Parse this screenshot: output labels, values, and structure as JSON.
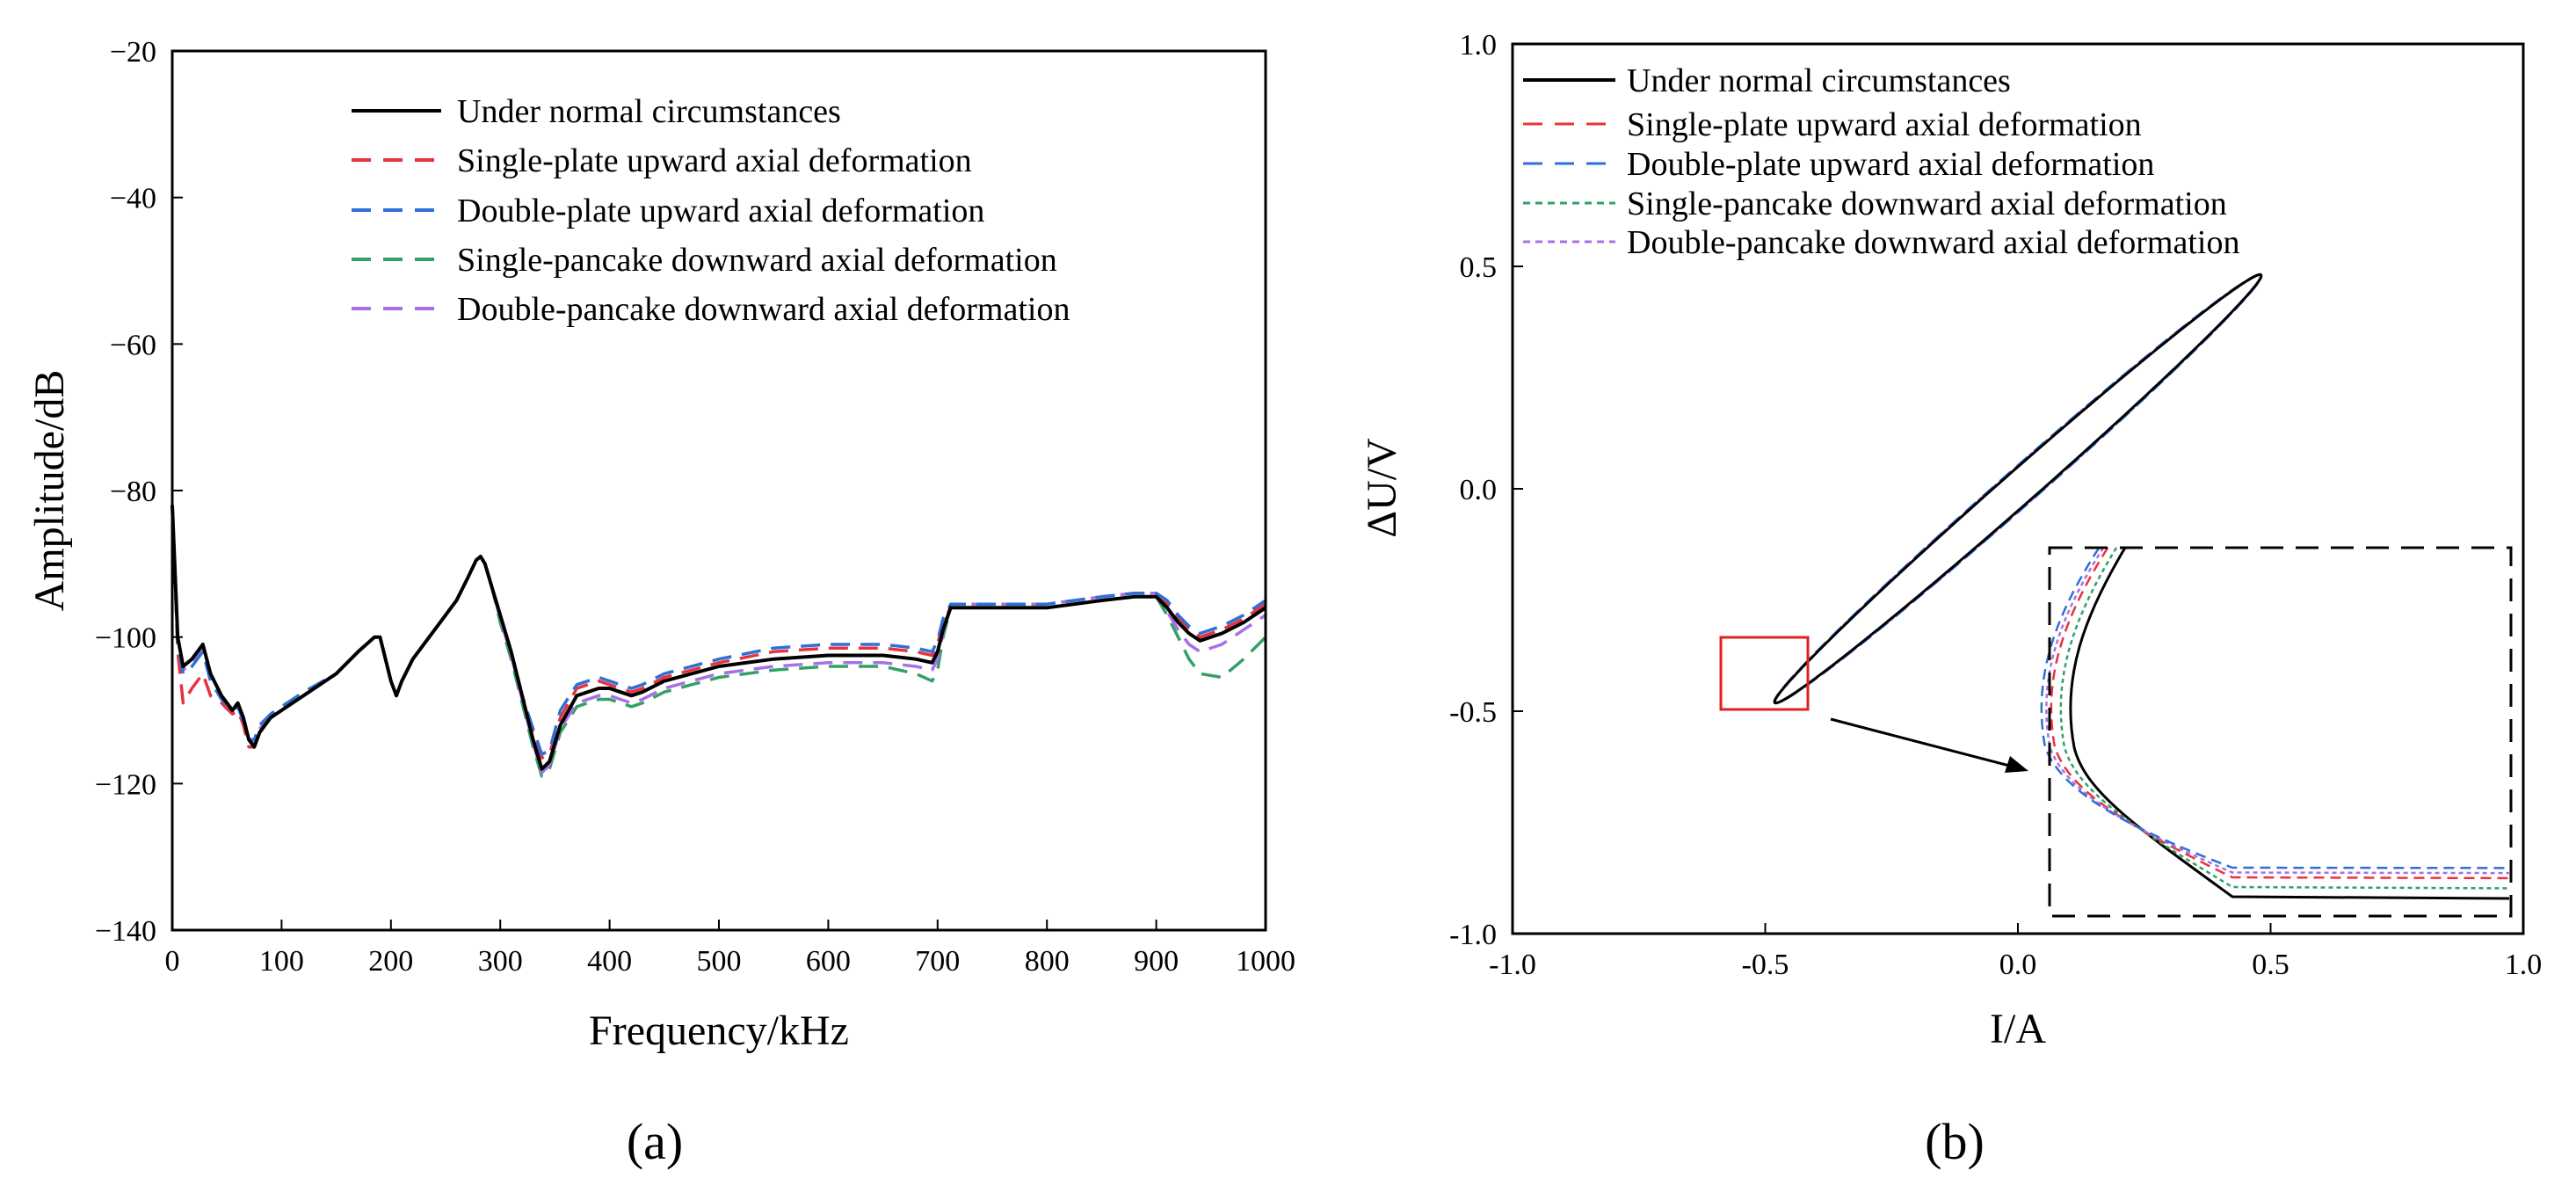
{
  "chart_data": [
    {
      "type": "line",
      "panel_label": "(a)",
      "xlabel": "Frequency/kHz",
      "ylabel": "Amplitude/dB",
      "xlim": [
        0,
        1000
      ],
      "ylim": [
        -140,
        -20
      ],
      "xticks": [
        0,
        100,
        200,
        300,
        400,
        500,
        600,
        700,
        800,
        900,
        1000
      ],
      "yticks": [
        -140,
        -120,
        -100,
        -80,
        -60,
        -40,
        -20
      ],
      "xtick_labels": [
        "0",
        "100",
        "200",
        "300",
        "400",
        "500",
        "600",
        "700",
        "800",
        "900",
        "1000"
      ],
      "ytick_labels": [
        "−140",
        "−120",
        "−100",
        "−80",
        "−60",
        "−40",
        "−20"
      ],
      "legend_position": "top-center",
      "series": [
        {
          "name": "Under normal circumstances",
          "color": "#000000",
          "style": "solid",
          "x": [
            0,
            5,
            10,
            18,
            28,
            35,
            45,
            55,
            60,
            65,
            70,
            75,
            80,
            90,
            100,
            120,
            150,
            170,
            185,
            190,
            195,
            200,
            205,
            210,
            220,
            240,
            260,
            270,
            278,
            282,
            286,
            292,
            300,
            310,
            320,
            330,
            338,
            345,
            355,
            370,
            390,
            400,
            410,
            420,
            430,
            450,
            500,
            550,
            600,
            650,
            680,
            695,
            700,
            705,
            712,
            720,
            760,
            800,
            850,
            880,
            900,
            910,
            920,
            930,
            940,
            960,
            980,
            1000
          ],
          "y": [
            -82,
            -100,
            -104,
            -103,
            -101,
            -105,
            -108,
            -110,
            -109,
            -111,
            -114,
            -115,
            -113,
            -111,
            -110,
            -108,
            -105,
            -102,
            -100,
            -100,
            -103,
            -106,
            -108,
            -106,
            -103,
            -99,
            -95,
            -92,
            -89.5,
            -89,
            -90,
            -93,
            -97,
            -102,
            -108,
            -114,
            -118,
            -117,
            -112,
            -108,
            -107,
            -107,
            -107.5,
            -108,
            -107.5,
            -106,
            -104,
            -103,
            -102.5,
            -102.5,
            -103,
            -103.5,
            -102,
            -99,
            -96,
            -96,
            -96,
            -96,
            -95,
            -94.5,
            -94.5,
            -96,
            -98,
            -99.5,
            -100.5,
            -99.5,
            -98,
            -96
          ]
        },
        {
          "name": "Single-plate upward axial deformation",
          "color": "#e8333e",
          "style": "dashed",
          "x": [
            0,
            5,
            10,
            18,
            28,
            35,
            45,
            55,
            60,
            65,
            70,
            75,
            80,
            90,
            100,
            120,
            150,
            170,
            185,
            190,
            195,
            200,
            205,
            210,
            220,
            240,
            260,
            270,
            278,
            282,
            286,
            292,
            300,
            310,
            320,
            330,
            338,
            345,
            355,
            370,
            390,
            400,
            410,
            420,
            430,
            450,
            500,
            550,
            600,
            650,
            680,
            695,
            700,
            705,
            712,
            720,
            760,
            800,
            850,
            880,
            900,
            910,
            920,
            930,
            940,
            960,
            980,
            1000
          ],
          "y": [
            -82,
            -102,
            -109,
            -107,
            -105,
            -108,
            -109,
            -110.5,
            -110,
            -112,
            -115,
            -115,
            -112.5,
            -111,
            -110,
            -108,
            -105,
            -102,
            -100,
            -100,
            -103,
            -106,
            -108,
            -106,
            -103,
            -99,
            -95,
            -92,
            -89.5,
            -89,
            -90,
            -93,
            -97,
            -102,
            -108,
            -113,
            -116.5,
            -116,
            -111,
            -107,
            -106,
            -106.5,
            -107,
            -107.5,
            -107,
            -105.5,
            -103.5,
            -102,
            -101.5,
            -101.5,
            -102,
            -102.5,
            -101,
            -98,
            -96,
            -96,
            -96,
            -96,
            -95,
            -94.5,
            -94.5,
            -95.5,
            -97.5,
            -99,
            -100,
            -99,
            -97.5,
            -95.5
          ]
        },
        {
          "name": "Double-plate upward axial deformation",
          "color": "#2f6fd6",
          "style": "dashed",
          "x": [
            0,
            5,
            10,
            18,
            28,
            35,
            45,
            55,
            60,
            65,
            70,
            75,
            80,
            90,
            100,
            120,
            150,
            170,
            185,
            190,
            195,
            200,
            205,
            210,
            220,
            240,
            260,
            270,
            278,
            282,
            286,
            292,
            300,
            310,
            320,
            330,
            338,
            345,
            355,
            370,
            390,
            400,
            410,
            420,
            430,
            450,
            500,
            550,
            600,
            650,
            680,
            695,
            700,
            705,
            712,
            720,
            760,
            800,
            850,
            880,
            900,
            910,
            920,
            930,
            940,
            960,
            980,
            1000
          ],
          "y": [
            -82,
            -101,
            -105,
            -104,
            -102,
            -106,
            -108.5,
            -110,
            -109.5,
            -111.5,
            -114,
            -114,
            -112,
            -110.5,
            -109.5,
            -107.5,
            -105,
            -102,
            -100,
            -100,
            -103,
            -106,
            -108,
            -106,
            -103,
            -99,
            -95,
            -92,
            -89.5,
            -89,
            -90,
            -93,
            -97,
            -102,
            -108,
            -112.5,
            -116,
            -115.5,
            -110,
            -106.5,
            -105.5,
            -106,
            -106.5,
            -107,
            -106.5,
            -105,
            -103,
            -101.5,
            -101,
            -101,
            -101.5,
            -102,
            -100.5,
            -97.5,
            -95.5,
            -95.5,
            -95.5,
            -95.5,
            -94.5,
            -94,
            -94,
            -95,
            -97,
            -98.5,
            -99.5,
            -98.5,
            -97,
            -95
          ]
        },
        {
          "name": "Single-pancake downward axial deformation",
          "color": "#33a064",
          "style": "dashed",
          "x": [
            0,
            5,
            10,
            18,
            28,
            35,
            45,
            55,
            60,
            65,
            70,
            75,
            80,
            90,
            100,
            120,
            150,
            170,
            185,
            190,
            195,
            200,
            205,
            210,
            220,
            240,
            260,
            270,
            278,
            282,
            286,
            292,
            300,
            310,
            320,
            330,
            338,
            345,
            355,
            370,
            390,
            400,
            410,
            420,
            430,
            450,
            500,
            550,
            600,
            650,
            680,
            695,
            700,
            705,
            712,
            720,
            760,
            800,
            850,
            880,
            900,
            910,
            920,
            930,
            940,
            960,
            980,
            1000
          ],
          "y": [
            -82,
            -100,
            -104,
            -103,
            -101,
            -105,
            -108,
            -110,
            -109,
            -111,
            -114,
            -115,
            -113,
            -111,
            -110,
            -108,
            -105,
            -102,
            -100,
            -100,
            -103,
            -106,
            -108,
            -106,
            -103,
            -99,
            -95,
            -92,
            -89.5,
            -89,
            -90,
            -93,
            -98,
            -103,
            -109,
            -115,
            -119,
            -118,
            -113,
            -109.5,
            -108.5,
            -108.5,
            -109,
            -109.5,
            -109,
            -107.5,
            -105.5,
            -104.5,
            -104,
            -104,
            -105,
            -106,
            -104.5,
            -100,
            -96,
            -96,
            -96,
            -96,
            -95,
            -94.5,
            -94.5,
            -97,
            -100,
            -103,
            -105,
            -105.5,
            -103,
            -100
          ]
        },
        {
          "name": "Double-pancake downward axial deformation",
          "color": "#a870e6",
          "style": "dashed",
          "x": [
            0,
            5,
            10,
            18,
            28,
            35,
            45,
            55,
            60,
            65,
            70,
            75,
            80,
            90,
            100,
            120,
            150,
            170,
            185,
            190,
            195,
            200,
            205,
            210,
            220,
            240,
            260,
            270,
            278,
            282,
            286,
            292,
            300,
            310,
            320,
            330,
            338,
            345,
            355,
            370,
            390,
            400,
            410,
            420,
            430,
            450,
            500,
            550,
            600,
            650,
            680,
            695,
            700,
            705,
            712,
            720,
            760,
            800,
            850,
            880,
            900,
            910,
            920,
            930,
            940,
            960,
            980,
            1000
          ],
          "y": [
            -82,
            -101,
            -104.5,
            -103.5,
            -101.5,
            -105.5,
            -108,
            -110,
            -109.5,
            -111,
            -114,
            -114.5,
            -112.5,
            -111,
            -110,
            -108,
            -105,
            -102,
            -100,
            -100,
            -103,
            -106,
            -108,
            -106,
            -103,
            -99,
            -95,
            -92,
            -89.5,
            -89,
            -90,
            -93,
            -97.5,
            -102.5,
            -108.5,
            -114.5,
            -118.5,
            -117.5,
            -112.5,
            -109,
            -108,
            -108,
            -108.5,
            -109,
            -108.5,
            -107,
            -105,
            -104,
            -103.5,
            -103.5,
            -104,
            -104.5,
            -103,
            -99.5,
            -95.5,
            -95.5,
            -95.5,
            -95.5,
            -94.5,
            -94,
            -94,
            -96.5,
            -99,
            -101,
            -102,
            -101,
            -99,
            -97
          ]
        }
      ]
    },
    {
      "type": "line",
      "panel_label": "(b)",
      "xlabel": "I/A",
      "ylabel": "ΔU/V",
      "xlim": [
        -1.0,
        1.0
      ],
      "ylim": [
        -1.0,
        1.0
      ],
      "xticks": [
        -1.0,
        -0.5,
        0.0,
        0.5,
        1.0
      ],
      "yticks": [
        -1.0,
        -0.5,
        0.0,
        0.5,
        1.0
      ],
      "xtick_labels": [
        "-1.0",
        "-0.5",
        "0.0",
        "0.5",
        "1.0"
      ],
      "ytick_labels": [
        "-1.0",
        "-0.5",
        "0.0",
        "0.5",
        "1.0"
      ],
      "legend_position": "top-left",
      "curve": "closed ellipse loop (Lissajous figure)",
      "ellipse": {
        "center": [
          0.0,
          0.0
        ],
        "extreme_point": [
          0.48,
          0.48
        ],
        "semi_major": 0.68,
        "semi_minor": 0.035
      },
      "inset": {
        "zoom_region": {
          "x": [
            -0.53,
            -0.37
          ],
          "y": [
            -0.49,
            -0.32
          ]
        }
      },
      "series": [
        {
          "name": "Under normal circumstances",
          "color": "#000000",
          "style": "solid",
          "inset_offset": 0.0
        },
        {
          "name": "Single-plate upward axial deformation",
          "color": "#e8333e",
          "style": "dashed",
          "inset_offset": 2.0
        },
        {
          "name": "Double-plate upward axial deformation",
          "color": "#2f6fd6",
          "style": "dashed",
          "inset_offset": 3.0
        },
        {
          "name": "Single-pancake downward axial deformation",
          "color": "#33a064",
          "style": "dotted",
          "inset_offset": 1.0
        },
        {
          "name": "Double-pancake downward axial deformation",
          "color": "#a870e6",
          "style": "dotted",
          "inset_offset": 2.5
        }
      ]
    }
  ]
}
